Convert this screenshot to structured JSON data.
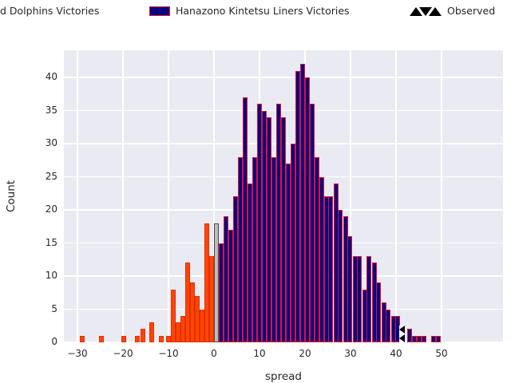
{
  "figure": {
    "background": "#ffffff",
    "plot_background": "#eaeaf2",
    "grid_color": "#ffffff",
    "text_color": "#262626"
  },
  "legend": {
    "entries": [
      {
        "label": "d Dolphins Victories",
        "swatch": "offscreen",
        "color": "#ff4500"
      },
      {
        "label": "Hanazono Kintetsu Liners Victories",
        "swatch": "patch",
        "color": "#000080",
        "edge_color": "#e8112d"
      },
      {
        "label": "Observed",
        "swatch": "triangles",
        "color": "#000000"
      }
    ]
  },
  "chart_data": {
    "type": "bar",
    "subtype": "histogram",
    "title": "",
    "xlabel": "spread",
    "ylabel": "Count",
    "x_ticks": [
      -30,
      -20,
      -10,
      0,
      10,
      20,
      30,
      40,
      50
    ],
    "y_ticks": [
      0,
      5,
      10,
      15,
      20,
      25,
      30,
      35,
      40
    ],
    "xlim": [
      -33,
      63.5
    ],
    "ylim": [
      0,
      44.1
    ],
    "bin_width": 1.05,
    "grid": true,
    "legend_position": "top",
    "series": [
      {
        "name": "d Dolphins Victories",
        "fill": "#ff4500",
        "edge": "#e03000",
        "bars": [
          {
            "x": -28.9,
            "count": 1
          },
          {
            "x": -24.7,
            "count": 1
          },
          {
            "x": -19.9,
            "count": 1
          },
          {
            "x": -16.8,
            "count": 1
          },
          {
            "x": -15.7,
            "count": 2
          },
          {
            "x": -13.6,
            "count": 3
          },
          {
            "x": -11.6,
            "count": 1
          },
          {
            "x": -10.0,
            "count": 1
          },
          {
            "x": -8.9,
            "count": 8
          },
          {
            "x": -7.9,
            "count": 3
          },
          {
            "x": -6.8,
            "count": 4
          },
          {
            "x": -5.8,
            "count": 12
          },
          {
            "x": -4.7,
            "count": 9
          },
          {
            "x": -3.7,
            "count": 7
          },
          {
            "x": -2.6,
            "count": 5
          },
          {
            "x": -1.6,
            "count": 18
          },
          {
            "x": -0.5,
            "count": 13
          }
        ]
      },
      {
        "name": "",
        "fill": "#bdbdbd",
        "edge": "#4a4a4a",
        "bars": [
          {
            "x": 0.5,
            "count": 18
          }
        ]
      },
      {
        "name": "Hanazono Kintetsu Liners Victories",
        "fill": "#000080",
        "edge": "#e8112d",
        "bars": [
          {
            "x": 1.6,
            "count": 15
          },
          {
            "x": 2.6,
            "count": 19
          },
          {
            "x": 3.7,
            "count": 17
          },
          {
            "x": 4.7,
            "count": 22
          },
          {
            "x": 5.8,
            "count": 28
          },
          {
            "x": 6.8,
            "count": 37
          },
          {
            "x": 7.9,
            "count": 24
          },
          {
            "x": 8.9,
            "count": 28
          },
          {
            "x": 10.0,
            "count": 36
          },
          {
            "x": 11.0,
            "count": 35
          },
          {
            "x": 12.1,
            "count": 34
          },
          {
            "x": 13.1,
            "count": 28
          },
          {
            "x": 14.2,
            "count": 36
          },
          {
            "x": 15.2,
            "count": 34
          },
          {
            "x": 16.3,
            "count": 27
          },
          {
            "x": 17.3,
            "count": 30
          },
          {
            "x": 18.4,
            "count": 41
          },
          {
            "x": 19.4,
            "count": 42
          },
          {
            "x": 20.5,
            "count": 40
          },
          {
            "x": 21.5,
            "count": 36
          },
          {
            "x": 22.6,
            "count": 28
          },
          {
            "x": 23.6,
            "count": 25
          },
          {
            "x": 24.7,
            "count": 22
          },
          {
            "x": 25.7,
            "count": 22
          },
          {
            "x": 26.8,
            "count": 24
          },
          {
            "x": 27.8,
            "count": 20
          },
          {
            "x": 28.9,
            "count": 19
          },
          {
            "x": 29.9,
            "count": 16
          },
          {
            "x": 31.0,
            "count": 13
          },
          {
            "x": 32.0,
            "count": 13
          },
          {
            "x": 33.1,
            "count": 8
          },
          {
            "x": 34.1,
            "count": 13
          },
          {
            "x": 35.2,
            "count": 12
          },
          {
            "x": 36.2,
            "count": 9
          },
          {
            "x": 37.3,
            "count": 6
          },
          {
            "x": 38.3,
            "count": 5
          },
          {
            "x": 39.4,
            "count": 4
          },
          {
            "x": 40.4,
            "count": 4
          },
          {
            "x": 43.0,
            "count": 2
          },
          {
            "x": 44.1,
            "count": 1
          },
          {
            "x": 45.1,
            "count": 1
          },
          {
            "x": 46.2,
            "count": 1
          },
          {
            "x": 48.3,
            "count": 1
          },
          {
            "x": 49.3,
            "count": 1
          }
        ]
      }
    ],
    "observed": {
      "x": 41.4,
      "bar_height": 2.5,
      "label": "Observed"
    }
  }
}
